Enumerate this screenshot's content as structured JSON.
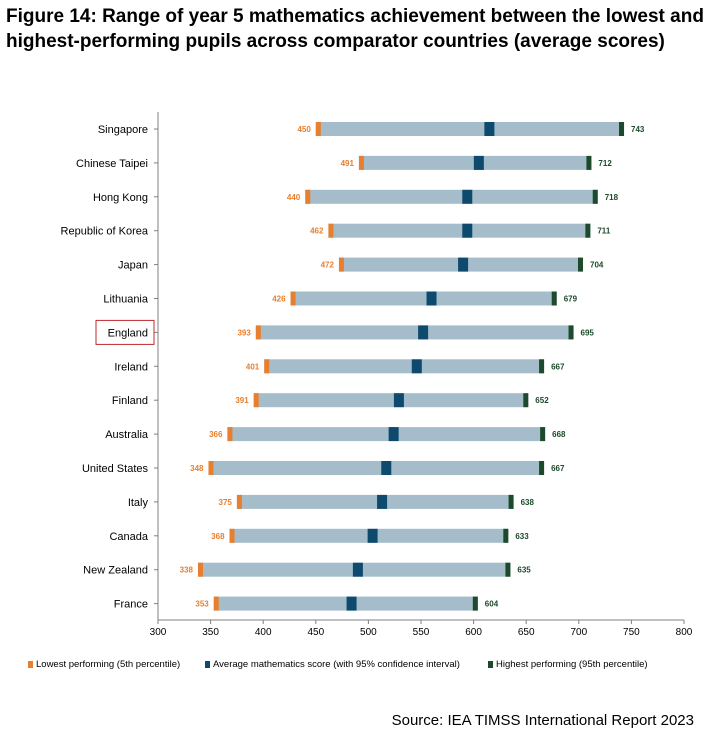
{
  "title": {
    "line1": "Figure 14: Range of year 5 mathematics achievement between the lowest and",
    "line2": "highest-performing pupils across comparator countries (average scores)"
  },
  "source": "Source: IEA TIMSS International Report 2023",
  "colors": {
    "range_bar": "#a5bdcb",
    "lowest": "#e87f2e",
    "average": "#0e4a6e",
    "highest": "#1c4a2a",
    "lowest_label": "#e87f2e",
    "highest_label": "#1c4a2a",
    "highlight_box": "#c0282e",
    "axis": "#808080"
  },
  "chart_data": {
    "type": "bar",
    "subtype": "horizontal range bar",
    "x_range": [
      300,
      800
    ],
    "x_ticks": [
      300,
      350,
      400,
      450,
      500,
      550,
      600,
      650,
      700,
      750,
      800
    ],
    "highlighted_category": "England",
    "legend_position": "bottom",
    "series": [
      {
        "name": "Lowest performing (5th percentile)",
        "key": "lowest"
      },
      {
        "name": "Average mathematics score (with 95% confidence interval)",
        "key": "average"
      },
      {
        "name": "Highest performing (95th percentile)",
        "key": "highest"
      }
    ],
    "categories": [
      "Singapore",
      "Chinese Taipei",
      "Hong Kong",
      "Republic of Korea",
      "Japan",
      "Lithuania",
      "England",
      "Ireland",
      "Finland",
      "Australia",
      "United States",
      "Italy",
      "Canada",
      "New Zealand",
      "France"
    ],
    "lowest": [
      450,
      491,
      440,
      462,
      472,
      426,
      393,
      401,
      391,
      366,
      348,
      375,
      368,
      338,
      353
    ],
    "average": [
      615,
      605,
      594,
      594,
      590,
      560,
      552,
      546,
      529,
      524,
      517,
      513,
      504,
      490,
      484
    ],
    "highest": [
      743,
      712,
      718,
      711,
      704,
      679,
      695,
      667,
      652,
      668,
      667,
      638,
      633,
      635,
      604
    ]
  }
}
